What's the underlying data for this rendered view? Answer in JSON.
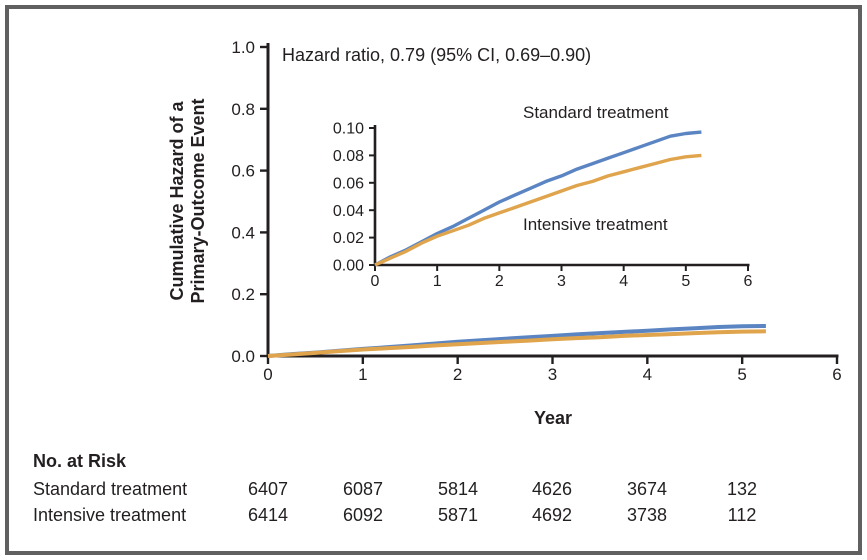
{
  "figure": {
    "annotation": "Hazard ratio, 0.79 (95% CI, 0.69–0.90)"
  },
  "chart_data": {
    "type": "line",
    "x": [
      0,
      0.25,
      0.5,
      0.75,
      1,
      1.25,
      1.5,
      1.75,
      2,
      2.25,
      2.5,
      2.75,
      3,
      3.25,
      3.5,
      3.75,
      4,
      4.25,
      4.5,
      4.75,
      5,
      5.25
    ],
    "series": [
      {
        "name": "Standard treatment",
        "color": "#5b85c2",
        "values": [
          0,
          0.006,
          0.011,
          0.017,
          0.023,
          0.028,
          0.034,
          0.04,
          0.046,
          0.051,
          0.056,
          0.061,
          0.065,
          0.07,
          0.074,
          0.078,
          0.082,
          0.086,
          0.09,
          0.094,
          0.096,
          0.097
        ]
      },
      {
        "name": "Intensive treatment",
        "color": "#dfa44c",
        "values": [
          0,
          0.005,
          0.01,
          0.016,
          0.021,
          0.025,
          0.029,
          0.034,
          0.038,
          0.042,
          0.046,
          0.05,
          0.054,
          0.058,
          0.061,
          0.065,
          0.068,
          0.071,
          0.074,
          0.077,
          0.079,
          0.08
        ]
      }
    ],
    "main_axes": {
      "ylabel_line1": "Cumulative Hazard of a",
      "ylabel_line2": "Primary-Outcome Event",
      "xlabel": "Year",
      "xlim": [
        0,
        6
      ],
      "ylim": [
        0,
        1.0
      ],
      "xticks": [
        "0",
        "1",
        "2",
        "3",
        "4",
        "5",
        "6"
      ],
      "yticks": [
        "0.0",
        "0.2",
        "0.4",
        "0.6",
        "0.8",
        "1.0"
      ],
      "grid": false,
      "legend_position": "none"
    },
    "inset_axes": {
      "xlim": [
        0,
        6
      ],
      "ylim": [
        0,
        0.1
      ],
      "xticks": [
        "0",
        "1",
        "2",
        "3",
        "4",
        "5",
        "6"
      ],
      "yticks": [
        "0.00",
        "0.02",
        "0.04",
        "0.06",
        "0.08",
        "0.10"
      ],
      "grid": false,
      "legend_position": "inline-labels"
    },
    "inset_labels": {
      "standard": "Standard treatment",
      "intensive": "Intensive treatment"
    }
  },
  "risk_table": {
    "title": "No. at Risk",
    "rows": [
      {
        "label": "Standard treatment",
        "counts": [
          "6407",
          "6087",
          "5814",
          "4626",
          "3674",
          "132"
        ]
      },
      {
        "label": "Intensive treatment",
        "counts": [
          "6414",
          "6092",
          "5871",
          "4692",
          "3738",
          "112"
        ]
      }
    ]
  },
  "colors": {
    "standard_line": "#5b85c2",
    "intensive_line": "#dfa44c",
    "axis_text": "#231f20",
    "border": "#606060"
  }
}
